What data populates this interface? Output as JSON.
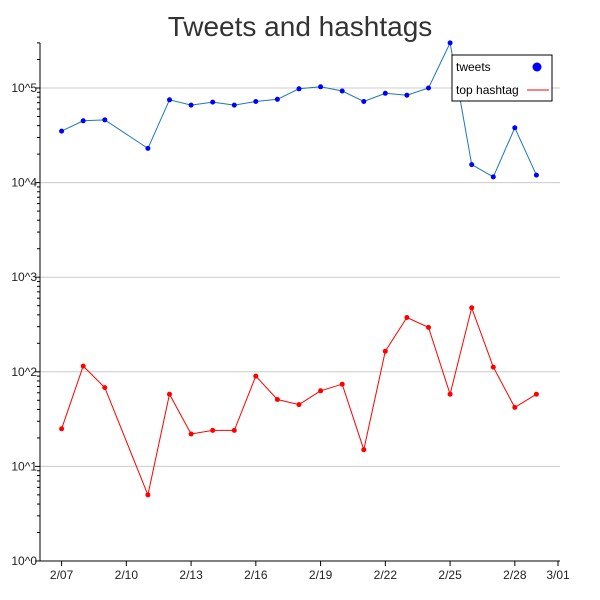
{
  "chart_data": {
    "type": "line",
    "title": "Tweets and hashtags",
    "xlabel": "",
    "ylabel": "",
    "y_scale": "log",
    "ylim": [
      1,
      300000
    ],
    "xlim": [
      "2/06",
      "3/01"
    ],
    "grid": "horizontal",
    "legend_position": "top-right",
    "x_tick_labels": [
      "2/07",
      "2/10",
      "2/13",
      "2/16",
      "2/19",
      "2/22",
      "2/25",
      "2/28",
      "3/01"
    ],
    "y_tick_labels": [
      "10^0",
      "10^1",
      "10^2",
      "10^3",
      "10^4",
      "10^5"
    ],
    "y_tick_values": [
      1,
      10,
      100,
      1000,
      10000,
      100000
    ],
    "x": [
      "2/07",
      "2/08",
      "2/09",
      "2/11",
      "2/12",
      "2/13",
      "2/14",
      "2/15",
      "2/16",
      "2/17",
      "2/18",
      "2/19",
      "2/20",
      "2/21",
      "2/22",
      "2/23",
      "2/24",
      "2/25",
      "2/26",
      "2/27",
      "2/28",
      "2/29"
    ],
    "series": [
      {
        "name": "tweets",
        "color": "#1f77b4",
        "marker_color": "#0000ff",
        "values": [
          35000,
          45000,
          46000,
          23000,
          75000,
          66000,
          71000,
          66000,
          72000,
          76000,
          98000,
          103000,
          93000,
          72000,
          88000,
          84000,
          100000,
          300000,
          15500,
          11500,
          38000,
          12000
        ]
      },
      {
        "name": "top hashtag",
        "color": "#ff0000",
        "marker_color": "#ff0000",
        "values": [
          25,
          115,
          68,
          5,
          58,
          22,
          24,
          24,
          90,
          51,
          45,
          63,
          74,
          15,
          165,
          375,
          295,
          58,
          475,
          112,
          42,
          58
        ]
      }
    ]
  }
}
